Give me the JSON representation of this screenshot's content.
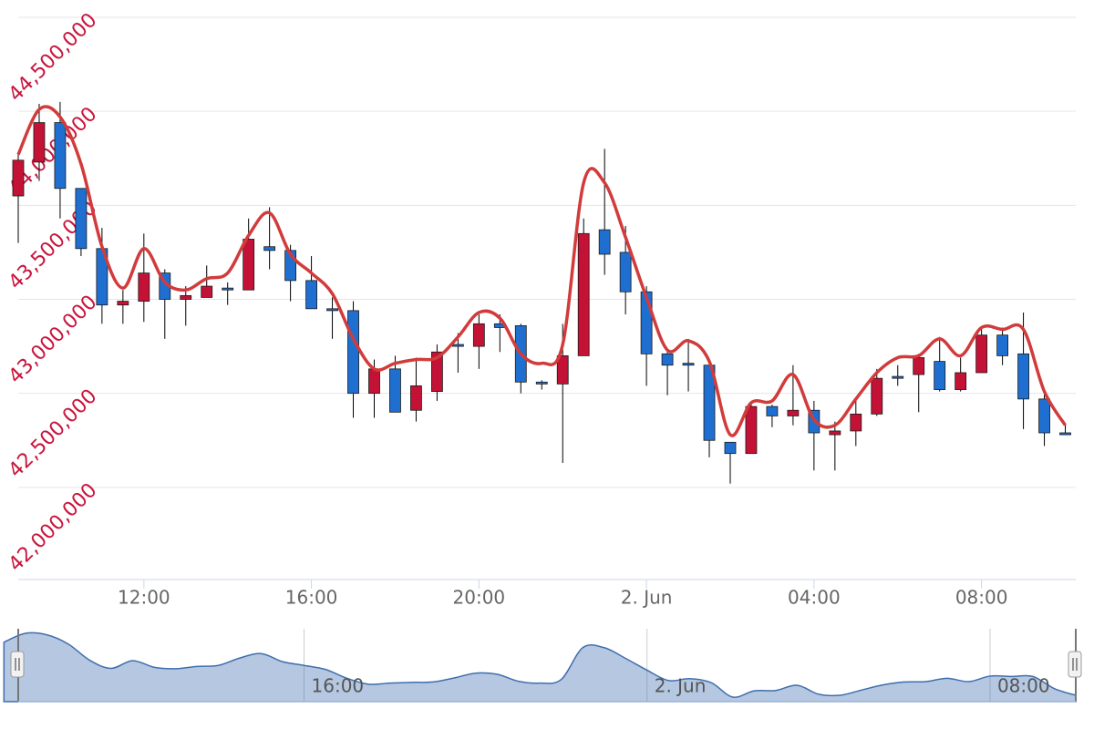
{
  "chart_data": {
    "type": "candlestick",
    "x": [
      "1. Jun 09:00",
      "1. Jun 09:30",
      "1. Jun 10:00",
      "1. Jun 10:30",
      "1. Jun 11:00",
      "1. Jun 11:30",
      "1. Jun 12:00",
      "1. Jun 12:30",
      "1. Jun 13:00",
      "1. Jun 13:30",
      "1. Jun 14:00",
      "1. Jun 14:30",
      "1. Jun 15:00",
      "1. Jun 15:30",
      "1. Jun 16:00",
      "1. Jun 16:30",
      "1. Jun 17:00",
      "1. Jun 17:30",
      "1. Jun 18:00",
      "1. Jun 18:30",
      "1. Jun 19:00",
      "1. Jun 19:30",
      "1. Jun 20:00",
      "1. Jun 20:30",
      "1. Jun 21:00",
      "1. Jun 21:30",
      "1. Jun 22:00",
      "1. Jun 22:30",
      "1. Jun 23:00",
      "1. Jun 23:30",
      "2. Jun 00:00",
      "2. Jun 00:30",
      "2. Jun 01:00",
      "2. Jun 01:30",
      "2. Jun 02:00",
      "2. Jun 02:30",
      "2. Jun 03:00",
      "2. Jun 03:30",
      "2. Jun 04:00",
      "2. Jun 04:30",
      "2. Jun 05:00",
      "2. Jun 05:30",
      "2. Jun 06:00",
      "2. Jun 06:30",
      "2. Jun 07:00",
      "2. Jun 07:30",
      "2. Jun 08:00",
      "2. Jun 08:30",
      "2. Jun 09:00",
      "2. Jun 09:30",
      "2. Jun 10:00"
    ],
    "open": [
      43550000,
      43730000,
      43940000,
      43590000,
      43270000,
      42970000,
      42990000,
      43140000,
      43000000,
      43010000,
      43060000,
      43050000,
      43280000,
      43260000,
      43100000,
      42950000,
      42940000,
      42500000,
      42630000,
      42410000,
      42510000,
      42760000,
      42750000,
      42870000,
      42860000,
      42560000,
      42550000,
      42700000,
      43370000,
      43250000,
      43040000,
      42710000,
      42660000,
      42650000,
      42240000,
      42180000,
      42430000,
      42380000,
      42410000,
      42280000,
      42300000,
      42390000,
      42590000,
      42600000,
      42670000,
      42520000,
      42610000,
      42810000,
      42710000,
      42470000,
      42290000
    ],
    "high": [
      43770000,
      44040000,
      44050000,
      43590000,
      43380000,
      43050000,
      43350000,
      43160000,
      43070000,
      43180000,
      43090000,
      43430000,
      43490000,
      43290000,
      43230000,
      43010000,
      42990000,
      42680000,
      42700000,
      42690000,
      42760000,
      42820000,
      42920000,
      42920000,
      42870000,
      42570000,
      42870000,
      43430000,
      43800000,
      43390000,
      43070000,
      42730000,
      42790000,
      42670000,
      42240000,
      42440000,
      42440000,
      42650000,
      42460000,
      42350000,
      42460000,
      42630000,
      42650000,
      42710000,
      42800000,
      42690000,
      42850000,
      42850000,
      42930000,
      42500000,
      42330000
    ],
    "low": [
      43300000,
      43630000,
      43430000,
      43230000,
      42870000,
      42870000,
      42880000,
      42790000,
      42860000,
      43010000,
      42970000,
      43050000,
      43160000,
      42990000,
      42950000,
      42790000,
      42370000,
      42370000,
      42400000,
      42350000,
      42460000,
      42610000,
      42630000,
      42720000,
      42500000,
      42520000,
      42130000,
      42700000,
      43130000,
      42920000,
      42540000,
      42490000,
      42510000,
      42160000,
      42020000,
      42180000,
      42320000,
      42330000,
      42090000,
      42090000,
      42220000,
      42380000,
      42540000,
      42400000,
      42510000,
      42510000,
      42610000,
      42650000,
      42310000,
      42220000,
      42280000
    ],
    "close": [
      43740000,
      43940000,
      43590000,
      43270000,
      42970000,
      42990000,
      43140000,
      43000000,
      43020000,
      43070000,
      43050000,
      43320000,
      43260000,
      43100000,
      42950000,
      42940000,
      42500000,
      42630000,
      42400000,
      42540000,
      42720000,
      42750000,
      42870000,
      42850000,
      42560000,
      42550000,
      42700000,
      43350000,
      43240000,
      43040000,
      42710000,
      42650000,
      42650000,
      42250000,
      42180000,
      42430000,
      42380000,
      42410000,
      42290000,
      42300000,
      42390000,
      42580000,
      42580000,
      42690000,
      42520000,
      42610000,
      42810000,
      42700000,
      42470000,
      42290000,
      42280000
    ],
    "up_color": "#c41236",
    "down_color": "#1f6fd1",
    "line": {
      "color": "#d23b3b",
      "values": [
        43770000,
        44010000,
        43970000,
        43720000,
        43280000,
        43060000,
        43270000,
        43090000,
        43050000,
        43110000,
        43140000,
        43340000,
        43460000,
        43240000,
        43140000,
        43030000,
        42790000,
        42630000,
        42660000,
        42680000,
        42690000,
        42800000,
        42930000,
        42900000,
        42710000,
        42660000,
        42760000,
        43620000,
        43620000,
        43330000,
        43010000,
        42730000,
        42780000,
        42670000,
        42280000,
        42450000,
        42460000,
        42600000,
        42360000,
        42330000,
        42470000,
        42610000,
        42690000,
        42700000,
        42790000,
        42700000,
        42850000,
        42840000,
        42840000,
        42510000,
        42330000
      ]
    },
    "xlim": [
      "1. Jun 09:00",
      "2. Jun 10:15"
    ],
    "xticks": [
      {
        "value": "1. Jun 12:00",
        "label": "12:00"
      },
      {
        "value": "1. Jun 16:00",
        "label": "16:00"
      },
      {
        "value": "1. Jun 20:00",
        "label": "20:00"
      },
      {
        "value": "2. Jun 00:00",
        "label": "2. Jun"
      },
      {
        "value": "2. Jun 04:00",
        "label": "04:00"
      },
      {
        "value": "2. Jun 08:00",
        "label": "08:00"
      }
    ],
    "ylim": [
      41500000,
      44500000
    ],
    "yticks": [
      {
        "value": 42000000,
        "label": "42,000,000"
      },
      {
        "value": 42500000,
        "label": "42,500,000"
      },
      {
        "value": 43000000,
        "label": "43,000,000"
      },
      {
        "value": 43500000,
        "label": "43,500,000"
      },
      {
        "value": 44000000,
        "label": "44,000,000"
      },
      {
        "value": 44500000,
        "label": "44,500,000"
      }
    ],
    "grid": true,
    "navigator": {
      "xlim": [
        "1. Jun 09:20",
        "2. Jun 10:00"
      ],
      "xticks": [
        {
          "value": "1. Jun 16:00",
          "label": "16:00"
        },
        {
          "value": "2. Jun 00:00",
          "label": "2. Jun"
        },
        {
          "value": "2. Jun 08:00",
          "label": "08:00"
        }
      ]
    }
  }
}
